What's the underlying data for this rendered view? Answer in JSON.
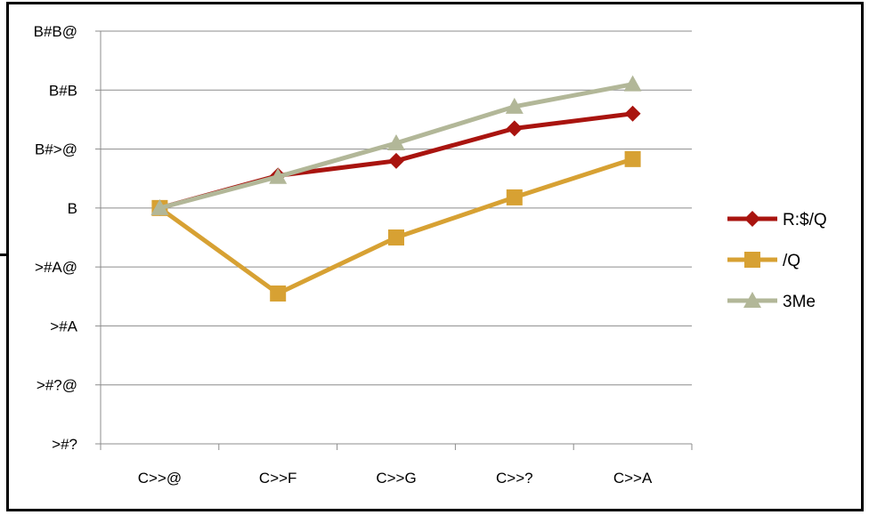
{
  "chart_data": {
    "type": "line",
    "categories": [
      "C>>@",
      "C>>F",
      "C>>G",
      "C>>?",
      "C>>A"
    ],
    "y_ticks": [
      ">#?",
      ">#?@",
      ">#A",
      ">#A@",
      "B",
      "B#>@",
      "B#B",
      "B#B@"
    ],
    "ylim": [
      -4,
      3
    ],
    "series": [
      {
        "name": "R:$/Q",
        "color": "#A9140F",
        "marker": "diamond",
        "values": [
          0,
          0.55,
          0.8,
          1.35,
          1.6
        ]
      },
      {
        "name": "/Q",
        "color": "#D7A133",
        "marker": "square",
        "values": [
          0,
          -1.45,
          -0.5,
          0.18,
          0.83
        ]
      },
      {
        "name": "3Me",
        "color": "#B2B798",
        "marker": "triangle",
        "values": [
          0,
          0.53,
          1.1,
          1.72,
          2.1
        ]
      }
    ],
    "grid": true,
    "legend_position": "right"
  }
}
